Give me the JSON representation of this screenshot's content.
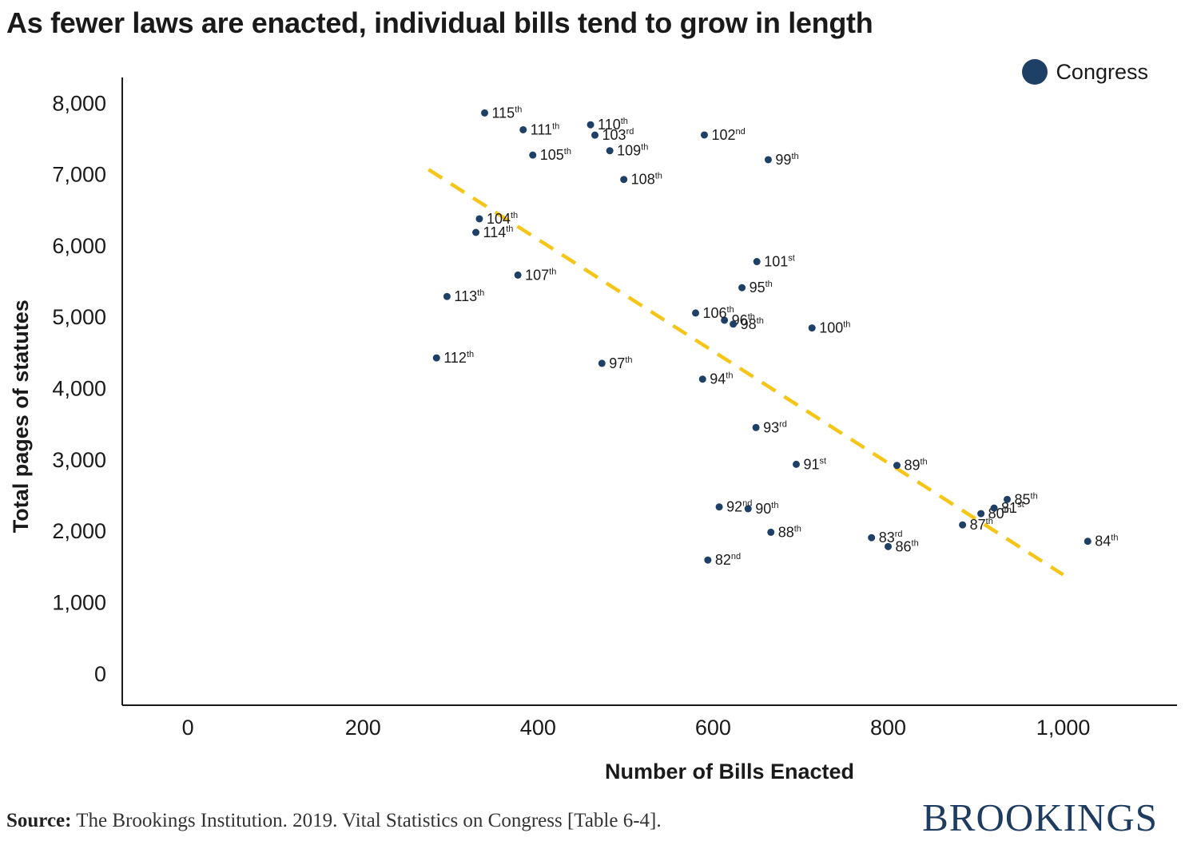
{
  "title": "As fewer laws are enacted, individual bills tend to grow in length",
  "legend": {
    "label": "Congress"
  },
  "source": {
    "label": "Source:",
    "text": " The Brookings Institution. 2019. Vital Statistics on Congress [Table 6-4]."
  },
  "brand": "BROOKINGS",
  "colors": {
    "point": "#1e3f66",
    "trend": "#f5c518",
    "axis": "#1a1a1a"
  },
  "chart_data": {
    "type": "scatter",
    "title": "As fewer laws are enacted, individual bills tend to grow in length",
    "xlabel": "Number of Bills Enacted",
    "ylabel": "Total pages of statutes",
    "xlim": [
      -75,
      1130
    ],
    "ylim": [
      -450,
      8350
    ],
    "x_ticks": [
      0,
      200,
      400,
      600,
      800,
      1000
    ],
    "x_tick_labels": [
      "0",
      "200",
      "400",
      "600",
      "800",
      "1,000"
    ],
    "y_ticks": [
      0,
      1000,
      2000,
      3000,
      4000,
      5000,
      6000,
      7000,
      8000
    ],
    "y_tick_labels": [
      "0",
      "1,000",
      "2,000",
      "3,000",
      "4,000",
      "5,000",
      "6,000",
      "7,000",
      "8,000"
    ],
    "grid": false,
    "legend_position": "top-right",
    "series": [
      {
        "name": "Congress",
        "points": [
          {
            "label": "80",
            "suffix": "th",
            "x": 906,
            "y": 2236
          },
          {
            "label": "81",
            "suffix": "st",
            "x": 921,
            "y": 2314
          },
          {
            "label": "82",
            "suffix": "nd",
            "x": 594,
            "y": 1585
          },
          {
            "label": "83",
            "suffix": "rd",
            "x": 781,
            "y": 1899
          },
          {
            "label": "84",
            "suffix": "th",
            "x": 1028,
            "y": 1848
          },
          {
            "label": "85",
            "suffix": "th",
            "x": 936,
            "y": 2435
          },
          {
            "label": "86",
            "suffix": "th",
            "x": 800,
            "y": 1774
          },
          {
            "label": "87",
            "suffix": "th",
            "x": 885,
            "y": 2078
          },
          {
            "label": "88",
            "suffix": "th",
            "x": 666,
            "y": 1975
          },
          {
            "label": "89",
            "suffix": "th",
            "x": 810,
            "y": 2912
          },
          {
            "label": "90",
            "suffix": "th",
            "x": 640,
            "y": 2304
          },
          {
            "label": "91",
            "suffix": "st",
            "x": 695,
            "y": 2927
          },
          {
            "label": "92",
            "suffix": "nd",
            "x": 607,
            "y": 2330
          },
          {
            "label": "93",
            "suffix": "rd",
            "x": 649,
            "y": 3443
          },
          {
            "label": "94",
            "suffix": "th",
            "x": 588,
            "y": 4121
          },
          {
            "label": "95",
            "suffix": "th",
            "x": 633,
            "y": 5403
          },
          {
            "label": "96",
            "suffix": "th",
            "x": 613,
            "y": 4947
          },
          {
            "label": "97",
            "suffix": "th",
            "x": 473,
            "y": 4343
          },
          {
            "label": "98",
            "suffix": "th",
            "x": 623,
            "y": 4893
          },
          {
            "label": "99",
            "suffix": "th",
            "x": 663,
            "y": 7197
          },
          {
            "label": "100",
            "suffix": "th",
            "x": 713,
            "y": 4839
          },
          {
            "label": "101",
            "suffix": "st",
            "x": 650,
            "y": 5769
          },
          {
            "label": "102",
            "suffix": "nd",
            "x": 590,
            "y": 7544
          },
          {
            "label": "103",
            "suffix": "rd",
            "x": 465,
            "y": 7542
          },
          {
            "label": "104",
            "suffix": "th",
            "x": 333,
            "y": 6369
          },
          {
            "label": "105",
            "suffix": "th",
            "x": 394,
            "y": 7262
          },
          {
            "label": "106",
            "suffix": "th",
            "x": 580,
            "y": 5048
          },
          {
            "label": "107",
            "suffix": "th",
            "x": 377,
            "y": 5580
          },
          {
            "label": "108",
            "suffix": "th",
            "x": 498,
            "y": 6920
          },
          {
            "label": "109",
            "suffix": "th",
            "x": 482,
            "y": 7323
          },
          {
            "label": "110",
            "suffix": "th",
            "x": 460,
            "y": 7687
          },
          {
            "label": "111",
            "suffix": "th",
            "x": 383,
            "y": 7617
          },
          {
            "label": "112",
            "suffix": "th",
            "x": 284,
            "y": 4419
          },
          {
            "label": "113",
            "suffix": "th",
            "x": 296,
            "y": 5280
          },
          {
            "label": "114",
            "suffix": "th",
            "x": 329,
            "y": 6178
          },
          {
            "label": "115",
            "suffix": "th",
            "x": 339,
            "y": 7853
          }
        ]
      }
    ],
    "trendline": {
      "x": [
        275,
        1000
      ],
      "y": [
        7059,
        1379
      ]
    }
  }
}
